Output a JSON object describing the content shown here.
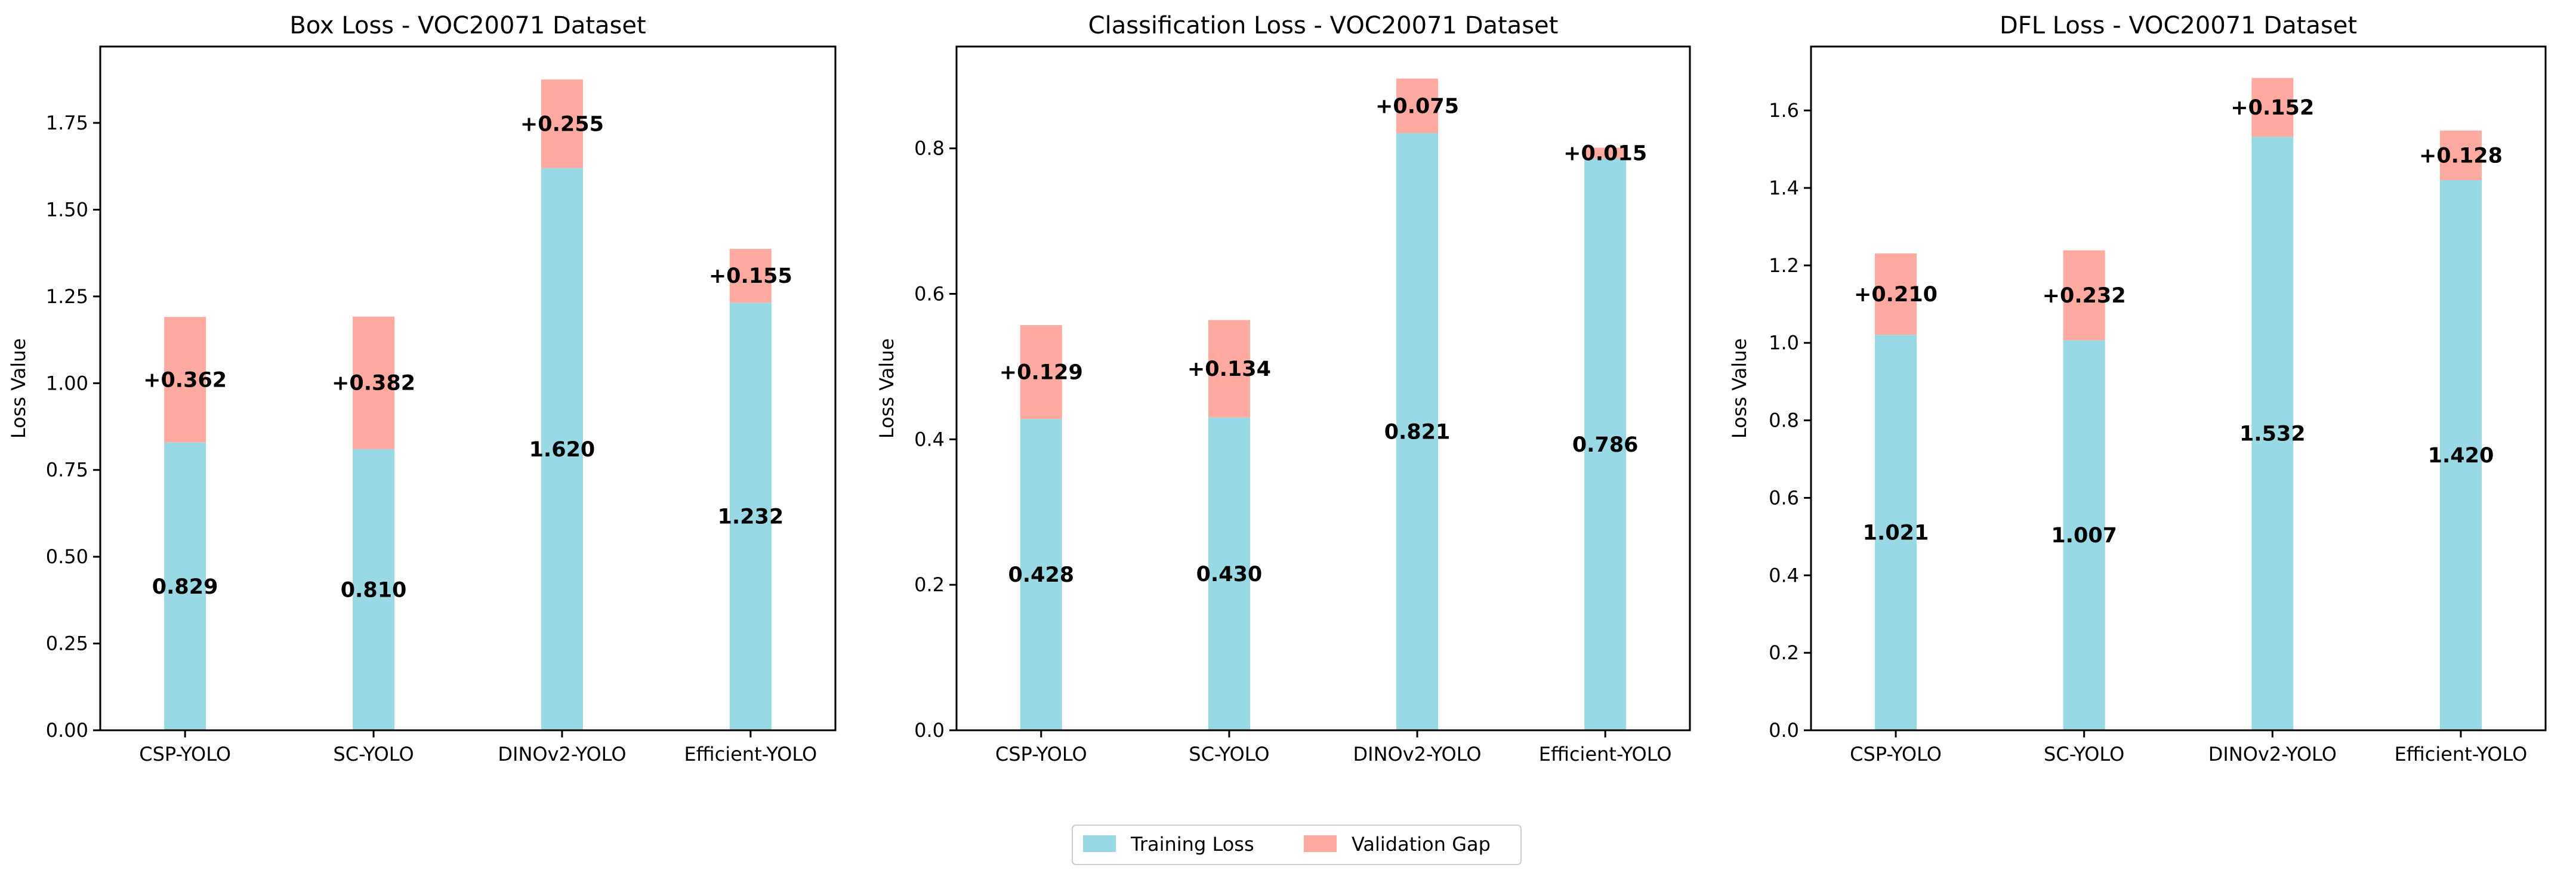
{
  "colors": {
    "training": "#99d9e5",
    "gap": "#ffaaa1"
  },
  "legend": {
    "training_label": "Training Loss",
    "gap_label": "Validation Gap"
  },
  "chart_data": [
    {
      "type": "bar",
      "title": "Box Loss - VOC20071 Dataset",
      "ylabel": "Loss Value",
      "ylim": [
        0,
        1.97
      ],
      "yticks": [
        0,
        0.25,
        0.5,
        0.75,
        1.0,
        1.25,
        1.5,
        1.75
      ],
      "ytick_labels": [
        "0.00",
        "0.25",
        "0.50",
        "0.75",
        "1.00",
        "1.25",
        "1.50",
        "1.75"
      ],
      "categories": [
        "CSP-YOLO",
        "SC-YOLO",
        "DINOv2-YOLO",
        "Efficient-YOLO"
      ],
      "series": [
        {
          "name": "Training Loss",
          "values": [
            0.829,
            0.81,
            1.62,
            1.232
          ],
          "labels": [
            "0.829",
            "0.810",
            "1.620",
            "1.232"
          ]
        },
        {
          "name": "Validation Gap",
          "values": [
            0.362,
            0.382,
            0.255,
            0.155
          ],
          "labels": [
            "+0.362",
            "+0.382",
            "+0.255",
            "+0.155"
          ]
        }
      ]
    },
    {
      "type": "bar",
      "title": "Classification Loss - VOC20071 Dataset",
      "ylabel": "Loss Value",
      "ylim": [
        0,
        0.94
      ],
      "yticks": [
        0,
        0.2,
        0.4,
        0.6,
        0.8
      ],
      "ytick_labels": [
        "0.0",
        "0.2",
        "0.4",
        "0.6",
        "0.8"
      ],
      "categories": [
        "CSP-YOLO",
        "SC-YOLO",
        "DINOv2-YOLO",
        "Efficient-YOLO"
      ],
      "series": [
        {
          "name": "Training Loss",
          "values": [
            0.428,
            0.43,
            0.821,
            0.786
          ],
          "labels": [
            "0.428",
            "0.430",
            "0.821",
            "0.786"
          ]
        },
        {
          "name": "Validation Gap",
          "values": [
            0.129,
            0.134,
            0.075,
            0.015
          ],
          "labels": [
            "+0.129",
            "+0.134",
            "+0.075",
            "+0.015"
          ]
        }
      ]
    },
    {
      "type": "bar",
      "title": "DFL Loss - VOC20071 Dataset",
      "ylabel": "Loss Value",
      "ylim": [
        0,
        1.765
      ],
      "yticks": [
        0,
        0.2,
        0.4,
        0.6,
        0.8,
        1.0,
        1.2,
        1.4,
        1.6
      ],
      "ytick_labels": [
        "0.0",
        "0.2",
        "0.4",
        "0.6",
        "0.8",
        "1.0",
        "1.2",
        "1.4",
        "1.6"
      ],
      "categories": [
        "CSP-YOLO",
        "SC-YOLO",
        "DINOv2-YOLO",
        "Efficient-YOLO"
      ],
      "series": [
        {
          "name": "Training Loss",
          "values": [
            1.021,
            1.007,
            1.532,
            1.42
          ],
          "labels": [
            "1.021",
            "1.007",
            "1.532",
            "1.420"
          ]
        },
        {
          "name": "Validation Gap",
          "values": [
            0.21,
            0.232,
            0.152,
            0.128
          ],
          "labels": [
            "+0.210",
            "+0.232",
            "+0.152",
            "+0.128"
          ]
        }
      ]
    }
  ]
}
